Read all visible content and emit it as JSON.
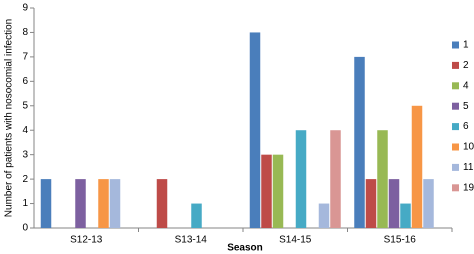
{
  "chart_data": {
    "type": "bar",
    "y_label": "Number of patients with nosocomial infection",
    "x_label": "Season",
    "categories": [
      "S12-13",
      "S13-14",
      "S14-15",
      "S15-16"
    ],
    "series": [
      {
        "name": "1",
        "color": "#4a7ebb",
        "values": [
          2,
          0,
          8,
          7
        ]
      },
      {
        "name": "2",
        "color": "#be4b48",
        "values": [
          0,
          2,
          3,
          2
        ]
      },
      {
        "name": "4",
        "color": "#98b954",
        "values": [
          0,
          0,
          3,
          4
        ]
      },
      {
        "name": "5",
        "color": "#7d60a0",
        "values": [
          2,
          0,
          0,
          2
        ]
      },
      {
        "name": "6",
        "color": "#46aac5",
        "values": [
          0,
          1,
          4,
          1
        ]
      },
      {
        "name": "10",
        "color": "#f79646",
        "values": [
          2,
          0,
          0,
          5
        ]
      },
      {
        "name": "11",
        "color": "#a5b8dc",
        "values": [
          2,
          0,
          1,
          2
        ]
      },
      {
        "name": "19",
        "color": "#d99694",
        "values": [
          0,
          0,
          4,
          0
        ]
      }
    ],
    "ylim": [
      0,
      9
    ],
    "yticks": [
      0,
      1,
      2,
      3,
      4,
      5,
      6,
      7,
      8,
      9
    ],
    "legend": "right"
  }
}
